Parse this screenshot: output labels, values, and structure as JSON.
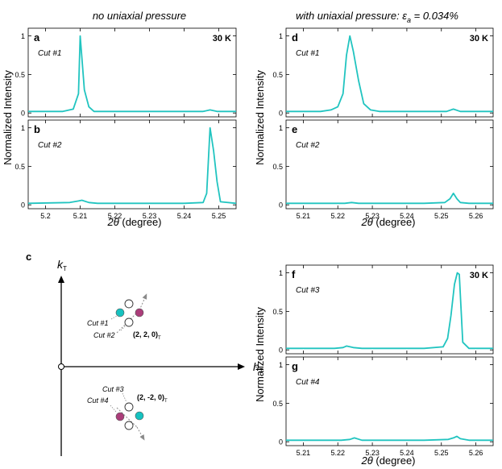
{
  "column_titles": {
    "left": "no uniaxial pressure",
    "right_prefix": "with uniaxial pressure: ",
    "right_symbol": "ε",
    "right_sub": "a",
    "right_suffix": " = 0.034%"
  },
  "temperature_label": "30 K",
  "ylabel": "Normalized Intensity",
  "xlabel_symbol": "2θ",
  "xlabel_unit": " (degree)",
  "panel_c": {
    "letter": "c",
    "k_axis": "k",
    "h_axis": "h",
    "axis_sub": "T",
    "top_cluster_label": "(2, 2, 0)",
    "bottom_cluster_label": "(2, -2, 0)",
    "labels": {
      "cut1": "Cut #1",
      "cut2": "Cut #2",
      "cut3": "Cut #3",
      "cut4": "Cut #4"
    },
    "colors": {
      "teal": "#16c2c0",
      "magenta": "#ab3d7a",
      "arrow": "#8a8a8a"
    }
  },
  "chart_data": [
    {
      "id": "a",
      "type": "line",
      "letter": "a",
      "cut": "Cut #1",
      "temperature": "30 K",
      "xlim": [
        5.195,
        5.255
      ],
      "ylim": [
        -0.05,
        1.1
      ],
      "yticks": [
        0,
        0.5,
        1
      ],
      "ytick_labels": [
        "0",
        "0.5",
        "1"
      ],
      "xticks": [],
      "xtick_labels": [],
      "x": [
        5.195,
        5.205,
        5.208,
        5.2095,
        5.21,
        5.2105,
        5.2112,
        5.2125,
        5.214,
        5.22,
        5.23,
        5.24,
        5.2455,
        5.2475,
        5.2495,
        5.255
      ],
      "y": [
        0.02,
        0.02,
        0.05,
        0.25,
        1.0,
        0.72,
        0.3,
        0.08,
        0.02,
        0.02,
        0.02,
        0.02,
        0.02,
        0.04,
        0.02,
        0.02
      ]
    },
    {
      "id": "b",
      "type": "line",
      "letter": "b",
      "cut": "Cut #2",
      "xlim": [
        5.195,
        5.255
      ],
      "ylim": [
        -0.05,
        1.1
      ],
      "yticks": [
        0,
        0.5,
        1
      ],
      "ytick_labels": [
        "0",
        "0.5",
        "1"
      ],
      "xticks": [
        5.2,
        5.21,
        5.22,
        5.23,
        5.24,
        5.25
      ],
      "xtick_labels": [
        "5.2",
        "5.21",
        "5.22",
        "5.23",
        "5.24",
        "5.25"
      ],
      "x": [
        5.195,
        5.207,
        5.2095,
        5.2105,
        5.2125,
        5.215,
        5.24,
        5.2455,
        5.2465,
        5.2475,
        5.2485,
        5.2495,
        5.2505,
        5.255
      ],
      "y": [
        0.02,
        0.03,
        0.05,
        0.06,
        0.03,
        0.02,
        0.02,
        0.03,
        0.15,
        1.0,
        0.7,
        0.3,
        0.04,
        0.02
      ]
    },
    {
      "id": "d",
      "type": "line",
      "letter": "d",
      "cut": "Cut #1",
      "temperature": "30 K",
      "xlim": [
        5.205,
        5.265
      ],
      "ylim": [
        -0.05,
        1.1
      ],
      "yticks": [
        0,
        0.5,
        1
      ],
      "ytick_labels": [
        "0",
        "0.5",
        "1"
      ],
      "xticks": [],
      "xtick_labels": [],
      "x": [
        5.205,
        5.215,
        5.218,
        5.22,
        5.2215,
        5.2225,
        5.2235,
        5.2245,
        5.226,
        5.2275,
        5.2295,
        5.232,
        5.245,
        5.2515,
        5.2535,
        5.2555,
        5.265
      ],
      "y": [
        0.02,
        0.02,
        0.04,
        0.08,
        0.25,
        0.75,
        1.0,
        0.8,
        0.42,
        0.12,
        0.04,
        0.02,
        0.02,
        0.02,
        0.05,
        0.02,
        0.02
      ]
    },
    {
      "id": "e",
      "type": "line",
      "letter": "e",
      "cut": "Cut #2",
      "xlim": [
        5.205,
        5.265
      ],
      "ylim": [
        -0.05,
        1.1
      ],
      "yticks": [
        0,
        0.5,
        1
      ],
      "ytick_labels": [
        "0",
        "0.5",
        "1"
      ],
      "xticks": [
        5.21,
        5.22,
        5.23,
        5.24,
        5.25,
        5.26
      ],
      "xtick_labels": [
        "5.21",
        "5.22",
        "5.23",
        "5.24",
        "5.25",
        "5.26"
      ],
      "x": [
        5.205,
        5.222,
        5.224,
        5.226,
        5.245,
        5.251,
        5.2525,
        5.2535,
        5.2545,
        5.2555,
        5.258,
        5.265
      ],
      "y": [
        0.02,
        0.02,
        0.03,
        0.02,
        0.02,
        0.03,
        0.08,
        0.15,
        0.08,
        0.03,
        0.02,
        0.02
      ]
    },
    {
      "id": "f",
      "type": "line",
      "letter": "f",
      "cut": "Cut #3",
      "temperature": "30 K",
      "xlim": [
        5.205,
        5.265
      ],
      "ylim": [
        -0.05,
        1.1
      ],
      "yticks": [
        0,
        0.5,
        1
      ],
      "ytick_labels": [
        "0",
        "0.5",
        "1"
      ],
      "xticks": [],
      "xtick_labels": [],
      "x": [
        5.205,
        5.219,
        5.2215,
        5.2225,
        5.2245,
        5.227,
        5.245,
        5.2505,
        5.2518,
        5.2528,
        5.2538,
        5.2546,
        5.2552,
        5.2562,
        5.258,
        5.265
      ],
      "y": [
        0.02,
        0.02,
        0.03,
        0.05,
        0.03,
        0.02,
        0.02,
        0.04,
        0.15,
        0.45,
        0.85,
        1.0,
        0.98,
        0.1,
        0.02,
        0.02
      ]
    },
    {
      "id": "g",
      "type": "line",
      "letter": "g",
      "cut": "Cut #4",
      "xlim": [
        5.205,
        5.265
      ],
      "ylim": [
        -0.05,
        1.1
      ],
      "yticks": [
        0,
        0.5,
        1
      ],
      "ytick_labels": [
        "0",
        "0.5",
        "1"
      ],
      "xticks": [
        5.21,
        5.22,
        5.23,
        5.24,
        5.25,
        5.26
      ],
      "xtick_labels": [
        "5.21",
        "5.22",
        "5.23",
        "5.24",
        "5.25",
        "5.26"
      ],
      "x": [
        5.205,
        5.221,
        5.2235,
        5.2248,
        5.227,
        5.245,
        5.252,
        5.2535,
        5.2545,
        5.2555,
        5.258,
        5.265
      ],
      "y": [
        0.02,
        0.02,
        0.03,
        0.05,
        0.02,
        0.02,
        0.03,
        0.05,
        0.07,
        0.04,
        0.02,
        0.02
      ]
    }
  ]
}
